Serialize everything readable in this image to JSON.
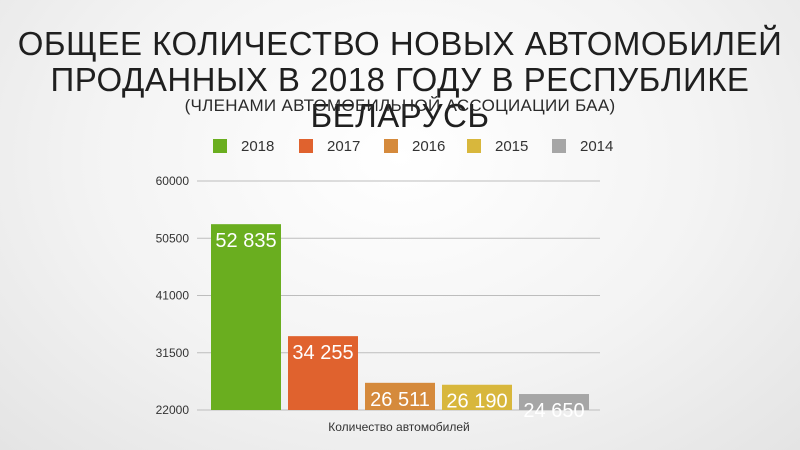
{
  "title_line_1": "ОБЩЕЕ КОЛИЧЕСТВО НОВЫХ АВТОМОБИЛЕЙ",
  "title_line_2": "ПРОДАННЫХ В 2018 ГОДУ В РЕСПУБЛИКЕ БЕЛАРУСЬ",
  "subtitle": "(ЧЛЕНАМИ АВТОМОБИЛЬНОЙ АССОЦИАЦИИ БАА)",
  "chart_data": {
    "type": "bar",
    "title": "ОБЩЕЕ КОЛИЧЕСТВО НОВЫХ АВТОМОБИЛЕЙ ПРОДАННЫХ В 2018 ГОДУ В РЕСПУБЛИКЕ БЕЛАРУСЬ",
    "subtitle": "(ЧЛЕНАМИ АВТОМОБИЛЬНОЙ АССОЦИАЦИИ БАА)",
    "xlabel": "Количество автомобилей",
    "ylabel": "",
    "ylim": [
      22000,
      60000
    ],
    "yticks": [
      22000,
      31500,
      41000,
      50500,
      60000
    ],
    "ytick_labels": [
      "22000",
      "31500",
      "41000",
      "50500",
      "60000"
    ],
    "grid": true,
    "legend_position": "top",
    "series": [
      {
        "name": "2018",
        "value": 52835,
        "label": "52 835",
        "color": "#6aae1f"
      },
      {
        "name": "2017",
        "value": 34255,
        "label": "34 255",
        "color": "#e0622e"
      },
      {
        "name": "2016",
        "value": 26511,
        "label": "26 511",
        "color": "#d58a3c"
      },
      {
        "name": "2015",
        "value": 26190,
        "label": "26 190",
        "color": "#d8b73c"
      },
      {
        "name": "2014",
        "value": 24650,
        "label": "24 650",
        "color": "#a6a6a6"
      }
    ]
  }
}
